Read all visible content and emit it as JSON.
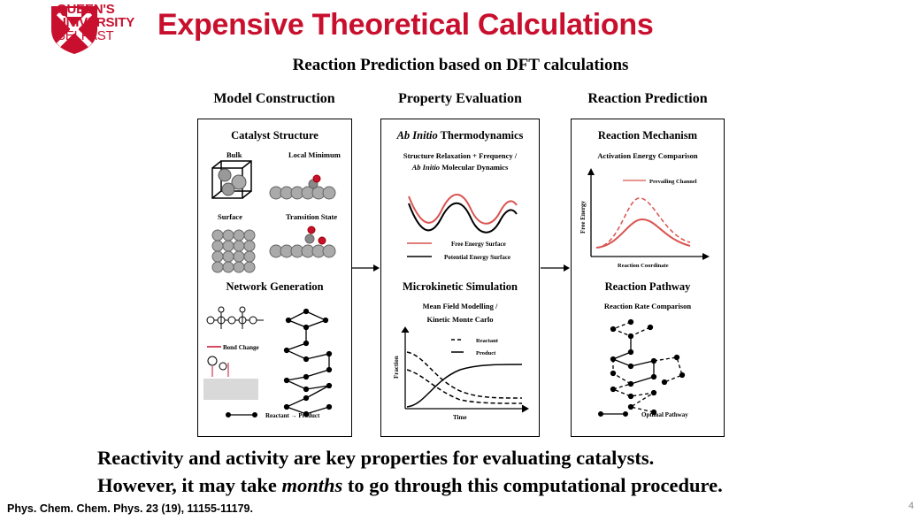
{
  "header": {
    "logo": {
      "line1": "QUEEN'S",
      "line2": "UNIVERSITY",
      "line3": "BELFAST"
    },
    "title": "Expensive Theoretical Calculations",
    "colors": {
      "brand_red": "#c8102e",
      "curve_red": "#d9534f"
    }
  },
  "subtitle": "Reaction Prediction based on DFT calculations",
  "columns": [
    {
      "heading": "Model Construction",
      "top_section": {
        "title": "Catalyst Structure",
        "labels": [
          "Bulk",
          "Local Minimum",
          "Surface",
          "Transition State"
        ]
      },
      "bottom_section": {
        "title": "Network Generation",
        "bond_label": "Bond Change",
        "legend": "Reactant → Product"
      }
    },
    {
      "heading": "Property Evaluation",
      "top_section": {
        "title_italic": "Ab Initio",
        "title_rest": " Thermodynamics",
        "sub1": "Structure Relaxation + Frequency /",
        "sub2_italic": "Ab Initio",
        "sub2_rest": " Molecular Dynamics",
        "legend": [
          "Free Energy Surface",
          "Potential Energy Surface"
        ]
      },
      "bottom_section": {
        "title": "Microkinetic Simulation",
        "sub1": "Mean Field Modelling /",
        "sub2": "Kinetic Monte Carlo",
        "legend": [
          "Reactant",
          "Product"
        ],
        "xlabel": "Time",
        "ylabel": "Fraction"
      }
    },
    {
      "heading": "Reaction Prediction",
      "top_section": {
        "title": "Reaction Mechanism",
        "sub": "Activation Energy Comparison",
        "legend": "Prevailing Channel",
        "xlabel": "Reaction Coordinate",
        "ylabel": "Free Energy"
      },
      "bottom_section": {
        "title": "Reaction Pathway",
        "sub": "Reaction Rate Comparison",
        "legend": "Optimal Pathway"
      }
    }
  ],
  "takeaway": {
    "line1": "Reactivity and activity are key properties for evaluating catalysts.",
    "line2_pre": "However, it may take ",
    "line2_italic": "months",
    "line2_post": " to go through this computational procedure."
  },
  "citation": "Phys. Chem. Chem. Phys. 23 (19), 11155-11179.",
  "page_number": "4"
}
